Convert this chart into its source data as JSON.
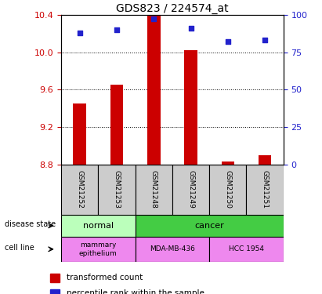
{
  "title": "GDS823 / 224574_at",
  "samples": [
    "GSM21252",
    "GSM21253",
    "GSM21248",
    "GSM21249",
    "GSM21250",
    "GSM21251"
  ],
  "transformed_counts": [
    9.45,
    9.65,
    10.42,
    10.02,
    8.83,
    8.9
  ],
  "percentile_ranks": [
    88,
    90,
    97,
    91,
    82,
    83
  ],
  "ylim_left": [
    8.8,
    10.4
  ],
  "ylim_right": [
    0,
    100
  ],
  "yticks_left": [
    8.8,
    9.2,
    9.6,
    10.0,
    10.4
  ],
  "yticks_right": [
    0,
    25,
    50,
    75,
    100
  ],
  "bar_color": "#cc0000",
  "dot_color": "#2222cc",
  "normal_color": "#bbffbb",
  "cancer_color": "#44cc44",
  "cell_color": "#ee88ee",
  "sample_box_color": "#cccccc",
  "left_axis_color": "#cc0000",
  "right_axis_color": "#2222cc",
  "bar_width": 0.35
}
